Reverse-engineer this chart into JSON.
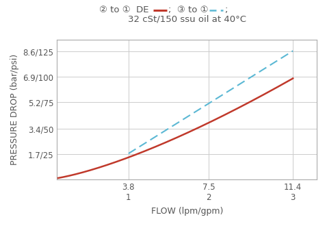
{
  "title_line2": "32 cSt/150 ssu oil at 40°C",
  "xlabel": "FLOW (lpm/gpm)",
  "ylabel": "PRESSURE DROP (bar/psi)",
  "ytick_labels": [
    "1.7/25",
    "3.4/50",
    "5.2/75",
    "6.9/100",
    "8.6/125"
  ],
  "ytick_values": [
    1.7,
    3.4,
    5.2,
    6.9,
    8.6
  ],
  "xtick_labels_top": [
    "3.8",
    "7.5",
    "11.4"
  ],
  "xtick_labels_bottom": [
    "1",
    "2",
    "3"
  ],
  "xtick_values": [
    3.8,
    7.5,
    11.4
  ],
  "xlim": [
    0.5,
    12.5
  ],
  "ylim": [
    0.0,
    9.4
  ],
  "red_line_x": [
    0.55,
    3.8,
    7.5,
    11.4
  ],
  "red_line_y": [
    0.1,
    1.7,
    3.4,
    6.9
  ],
  "blue_line_x": [
    3.8,
    7.5,
    11.4
  ],
  "blue_line_y": [
    1.7,
    5.2,
    8.6
  ],
  "red_color": "#c0392b",
  "blue_color": "#5bb8d4",
  "background_color": "#ffffff",
  "grid_color": "#cccccc",
  "title_fontsize": 9.5,
  "axis_label_fontsize": 9.0,
  "tick_fontsize": 8.5,
  "text_color": "#555555"
}
